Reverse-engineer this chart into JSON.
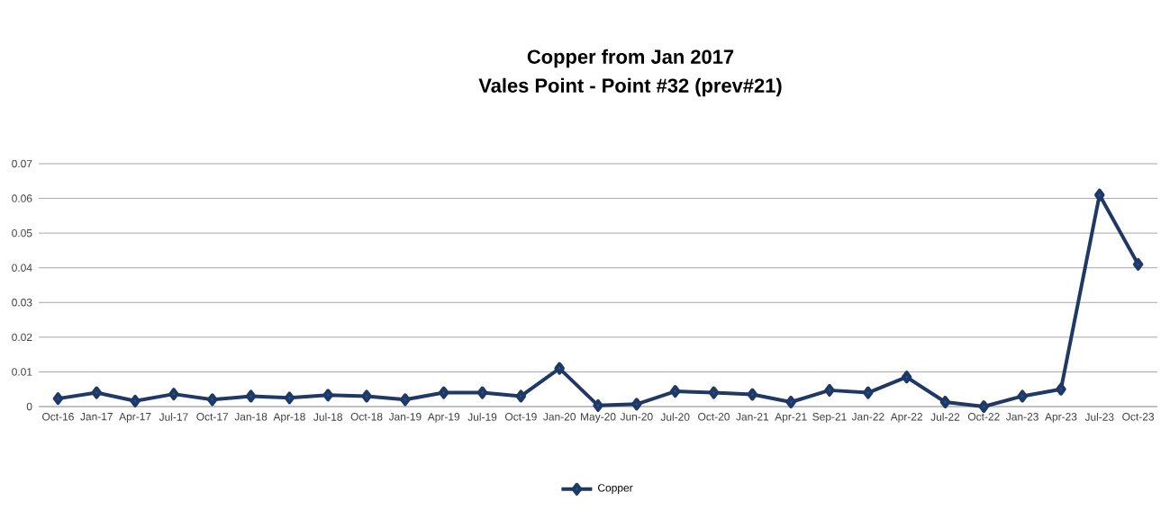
{
  "chart_data": {
    "type": "line",
    "title": "Copper  from Jan 2017",
    "subtitle": "Vales Point - Point #32 (prev#21)",
    "categories": [
      "Oct-16",
      "Jan-17",
      "Apr-17",
      "Jul-17",
      "Oct-17",
      "Jan-18",
      "Apr-18",
      "Jul-18",
      "Oct-18",
      "Jan-19",
      "Apr-19",
      "Jul-19",
      "Oct-19",
      "Jan-20",
      "May-20",
      "Jun-20",
      "Jul-20",
      "Oct-20",
      "Jan-21",
      "Apr-21",
      "Sep-21",
      "Jan-22",
      "Apr-22",
      "Jul-22",
      "Oct-22",
      "Jan-23",
      "Apr-23",
      "Jul-23",
      "Oct-23"
    ],
    "series": [
      {
        "name": "Copper",
        "color": "#203864",
        "values": [
          0.0023,
          0.004,
          0.0016,
          0.0036,
          0.002,
          0.003,
          0.0025,
          0.0033,
          0.003,
          0.002,
          0.004,
          0.004,
          0.003,
          0.011,
          0.0003,
          0.0007,
          0.0044,
          0.004,
          0.0035,
          0.0013,
          0.0047,
          0.004,
          0.0085,
          0.0013,
          0.0,
          0.003,
          0.005,
          0.061,
          0.041
        ]
      }
    ],
    "ylim": [
      0,
      0.07
    ],
    "yticks": [
      0,
      0.01,
      0.02,
      0.03,
      0.04,
      0.05,
      0.06,
      0.07
    ],
    "grid": "y",
    "legend": "bottom",
    "marker": "diamond",
    "line_style": "solid"
  }
}
